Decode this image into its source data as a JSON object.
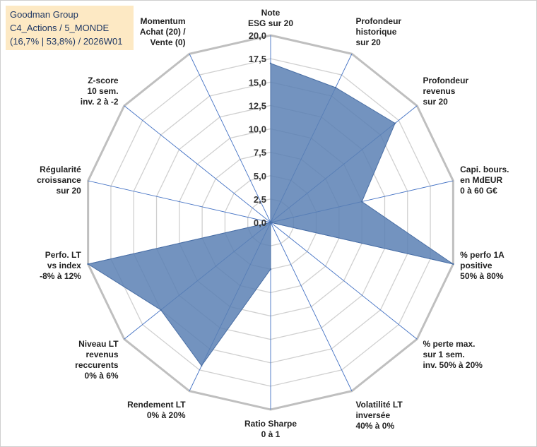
{
  "title_box": {
    "line1": "Goodman Group",
    "line2": "C4_Actions / 5_MONDE",
    "line3": "(16,7% | 53,8%) / 2026W01"
  },
  "chart_data": {
    "type": "radar",
    "title": "",
    "rmin": 0,
    "rmax": 20,
    "tick_values": [
      0,
      2.5,
      5,
      7.5,
      10,
      12.5,
      15,
      17.5,
      20
    ],
    "tick_labels": [
      "0,0",
      "2,5",
      "5,0",
      "7,5",
      "10,0",
      "12,5",
      "15,0",
      "17,5",
      "20,0"
    ],
    "categories": [
      [
        "Note",
        "ESG sur 20"
      ],
      [
        "Profondeur",
        "historique",
        "sur 20"
      ],
      [
        "Profondeur",
        "revenus",
        "sur 20"
      ],
      [
        "Capi. bours.",
        "en MdEUR",
        "0 à 60 G€"
      ],
      [
        "% perfo 1A",
        "positive",
        "50% à 80%"
      ],
      [
        "% perte max.",
        "sur 1 sem.",
        "inv. 50% à 20%"
      ],
      [
        "Volatilité LT",
        "inversée",
        "40% à 0%"
      ],
      [
        "Ratio Sharpe",
        "0 à 1"
      ],
      [
        "Rendement LT",
        "0% à 20%"
      ],
      [
        "Niveau LT",
        "revenus",
        "reccurents",
        "0% à 6%"
      ],
      [
        "Perfo. LT",
        "vs index",
        "-8% à 12%"
      ],
      [
        "Régularité",
        "croissance",
        "sur 20"
      ],
      [
        "Z-score",
        "10 sem.",
        "inv. 2 à -2"
      ],
      [
        "Momentum",
        "Achat (20) /",
        "Vente (0)"
      ]
    ],
    "values": [
      17,
      16,
      17,
      10,
      20,
      0,
      0,
      5,
      17,
      15,
      20,
      0,
      0,
      0
    ],
    "colors": {
      "fill": "#5b80b4",
      "stroke": "#4a6fa5",
      "grid": "#d0d0d0",
      "outer": "#bfbfbf",
      "spoke": "#4472c4"
    }
  }
}
